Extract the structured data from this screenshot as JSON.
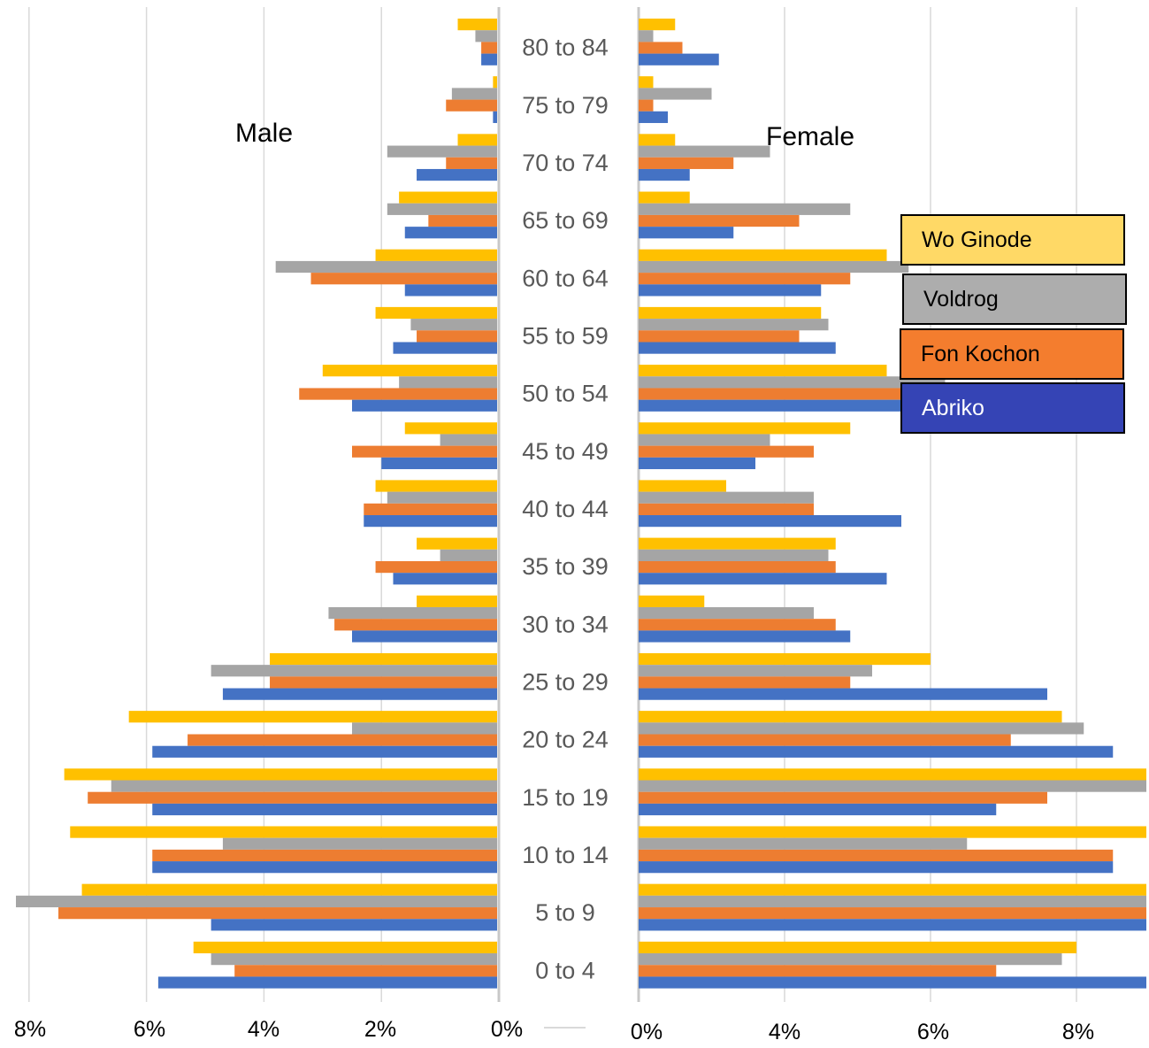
{
  "chart_data": {
    "type": "bar",
    "orientation": "horizontal-population-pyramid",
    "panels": {
      "left": "Male",
      "right": "Female"
    },
    "categories": [
      "0 to 4",
      "5 to 9",
      "10 to 14",
      "15 to 19",
      "20 to 24",
      "25 to 29",
      "30 to 34",
      "35 to 39",
      "40 to 44",
      "45 to 49",
      "50 to 54",
      "55 to 59",
      "60 to 64",
      "65 to 69",
      "70 to 74",
      "75 to 79",
      "80 to 84"
    ],
    "male_ticks": [
      "8%",
      "6%",
      "4%",
      "2%",
      "0%"
    ],
    "female_ticks": [
      "0%",
      "4%",
      "6%",
      "8%"
    ],
    "series": [
      {
        "name": "Wo Ginode",
        "color": "#FFC000",
        "male": [
          5.2,
          7.1,
          7.3,
          7.4,
          6.3,
          3.9,
          1.4,
          1.4,
          2.1,
          1.6,
          3.0,
          2.1,
          2.1,
          1.7,
          0.7,
          0.1,
          0.7
        ],
        "female": [
          6.0,
          8.3,
          8.6,
          7.2,
          5.8,
          4.0,
          0.9,
          2.7,
          1.2,
          2.9,
          3.4,
          2.5,
          3.4,
          0.7,
          0.5,
          0.2,
          0.5
        ]
      },
      {
        "name": "Voldrog",
        "color": "#A5A5A5",
        "male": [
          4.9,
          8.3,
          4.7,
          6.6,
          2.5,
          4.9,
          2.9,
          1.0,
          1.9,
          1.0,
          1.7,
          1.5,
          3.8,
          1.9,
          1.9,
          0.8,
          0.4
        ],
        "female": [
          5.8,
          8.2,
          4.5,
          8.7,
          6.1,
          3.2,
          2.4,
          2.6,
          2.4,
          1.8,
          4.2,
          2.6,
          3.7,
          2.9,
          1.8,
          1.0,
          0.2
        ]
      },
      {
        "name": "Fon Kochon",
        "color": "#ED7D31",
        "male": [
          4.5,
          7.5,
          5.9,
          7.0,
          5.3,
          3.9,
          2.8,
          2.1,
          2.3,
          2.5,
          3.4,
          1.4,
          3.2,
          1.2,
          0.9,
          0.9,
          0.3
        ],
        "female": [
          4.9,
          8.4,
          6.5,
          5.6,
          5.1,
          2.9,
          2.7,
          2.7,
          2.4,
          2.4,
          3.8,
          2.2,
          2.9,
          2.2,
          1.3,
          0.2,
          0.6
        ]
      },
      {
        "name": "Abriko",
        "color": "#4472C4",
        "male": [
          5.8,
          4.9,
          5.9,
          5.9,
          5.9,
          4.7,
          2.5,
          1.8,
          2.3,
          2.0,
          2.5,
          1.8,
          1.6,
          1.6,
          1.4,
          0.1,
          0.3
        ],
        "female": [
          7.4,
          7.4,
          6.5,
          4.9,
          6.5,
          5.6,
          2.9,
          3.4,
          3.6,
          1.6,
          3.6,
          2.7,
          2.5,
          1.3,
          0.7,
          0.4,
          1.1
        ]
      }
    ],
    "legend": [
      "Wo Ginode",
      "Voldrog",
      "Fon Kochon",
      "Abriko"
    ],
    "grid": true,
    "legend_placement": "right"
  }
}
